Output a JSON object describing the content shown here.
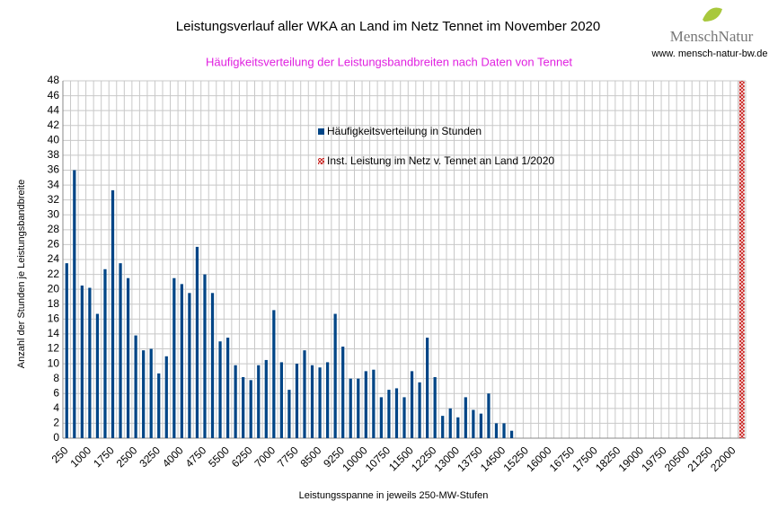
{
  "chart_data": {
    "type": "bar",
    "title": "Leistungsverlauf aller WKA an Land im Netz  Tennet im November 2020",
    "subtitle": "Häufigkeitsverteilung der Leistungsbandbreiten nach Daten von Tennet",
    "brand": "MenschNatur",
    "website": "www. mensch-natur-bw.de",
    "x_label": "Leistungsspanne in jeweils 250-MW-Stufen",
    "y_label": "Anzahl der Stunden je Leistungsbandbreite",
    "categories": [
      "250",
      null,
      null,
      "1000",
      null,
      null,
      "1750",
      null,
      null,
      "2500",
      null,
      null,
      "3250",
      null,
      null,
      "4000",
      null,
      null,
      "4750",
      null,
      null,
      "5500",
      null,
      null,
      "6250",
      null,
      null,
      "7000",
      null,
      null,
      "7750",
      null,
      null,
      "8500",
      null,
      null,
      "9250",
      null,
      null,
      "10000",
      null,
      null,
      "10750",
      null,
      null,
      "11500",
      null,
      null,
      "12250",
      null,
      null,
      "13000",
      null,
      null,
      "13750",
      null,
      null,
      "14500",
      null,
      null,
      "15250",
      null,
      null,
      "16000",
      null,
      null,
      "16750",
      null,
      null,
      "17500",
      null,
      null,
      "18250",
      null,
      null,
      "19000",
      null,
      null,
      "19750",
      null,
      null,
      "20500",
      null,
      null,
      "21250",
      null,
      null,
      "22000",
      null
    ],
    "series": [
      {
        "name": "Häufigkeitsverteilung in Stunden",
        "color": "#004586",
        "values": [
          23.5,
          36,
          20.5,
          20.2,
          16.7,
          22.7,
          33.3,
          23.5,
          21.5,
          13.8,
          11.8,
          12,
          8.7,
          11,
          21.5,
          20.7,
          19.5,
          25.7,
          22,
          19.5,
          13,
          13.5,
          9.8,
          8.2,
          7.8,
          9.8,
          10.5,
          17.2,
          10.2,
          6.5,
          10,
          11.8,
          9.8,
          9.5,
          10.2,
          16.7,
          12.3,
          8,
          8,
          9,
          9.2,
          5.5,
          6.5,
          6.7,
          5.5,
          9,
          7.5,
          13.5,
          8.2,
          3,
          4,
          2.8,
          5.5,
          3.8,
          3.3,
          6,
          2,
          2,
          1,
          null,
          null,
          null,
          null,
          null,
          null,
          null,
          null,
          null,
          null,
          null,
          null,
          null,
          null,
          null,
          null,
          null,
          null,
          null,
          null,
          null,
          null,
          null,
          null,
          null,
          null,
          null,
          null,
          null,
          null
        ]
      },
      {
        "name": "Inst. Leistung im Netz v. Tennet an Land 1/2020",
        "color": "#c9211e",
        "hatch": true,
        "values": [
          null,
          null,
          null,
          null,
          null,
          null,
          null,
          null,
          null,
          null,
          null,
          null,
          null,
          null,
          null,
          null,
          null,
          null,
          null,
          null,
          null,
          null,
          null,
          null,
          null,
          null,
          null,
          null,
          null,
          null,
          null,
          null,
          null,
          null,
          null,
          null,
          null,
          null,
          null,
          null,
          null,
          null,
          null,
          null,
          null,
          null,
          null,
          null,
          null,
          null,
          null,
          null,
          null,
          null,
          null,
          null,
          null,
          null,
          null,
          null,
          null,
          null,
          null,
          null,
          null,
          null,
          null,
          null,
          null,
          null,
          null,
          null,
          null,
          null,
          null,
          null,
          null,
          null,
          null,
          null,
          null,
          null,
          null,
          null,
          null,
          null,
          null,
          null,
          48
        ]
      }
    ],
    "ylim": [
      0,
      48
    ],
    "yticks": [
      0,
      2,
      4,
      6,
      8,
      10,
      12,
      14,
      16,
      18,
      20,
      22,
      24,
      26,
      28,
      30,
      32,
      34,
      36,
      38,
      40,
      42,
      44,
      46,
      48
    ],
    "grid": true
  }
}
